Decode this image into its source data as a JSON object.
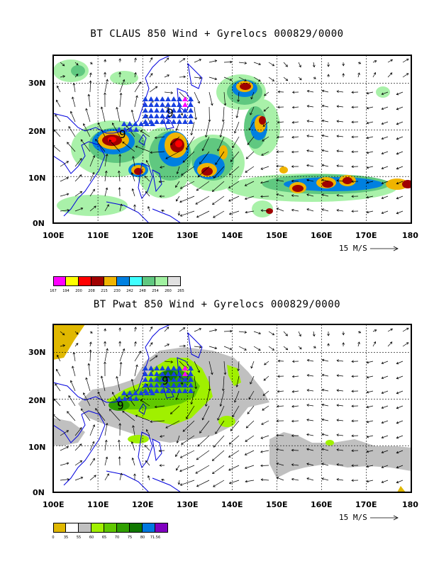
{
  "panels": [
    {
      "title": "BT CLAUS 850 Wind + Gyrelocs 000829/0000",
      "lon_labels": [
        "100E",
        "110E",
        "120E",
        "130E",
        "140E",
        "150E",
        "160E",
        "170E",
        "180"
      ],
      "lat_labels": [
        "30N",
        "20N",
        "10N",
        "0N"
      ],
      "ref_vector": "15 M/S",
      "colorbar_colors": [
        "#ff00ff",
        "#ffff00",
        "#ff0000",
        "#a00000",
        "#f0b400",
        "#0080e0",
        "#40ffff",
        "#60c880",
        "#a0f0a0",
        "#e0e0e0"
      ],
      "colorbar_labels": [
        "167",
        "194",
        "200",
        "208",
        "215",
        "230",
        "242",
        "248",
        "254",
        "260",
        "265"
      ]
    },
    {
      "title": "BT Pwat 850 Wind + Gyrelocs 000829/0000",
      "lon_labels": [
        "100E",
        "110E",
        "120E",
        "130E",
        "140E",
        "150E",
        "160E",
        "170E",
        "180"
      ],
      "lat_labels": [
        "30N",
        "20N",
        "10N",
        "0N"
      ],
      "ref_vector": "15 M/S",
      "colorbar_colors": [
        "#e0b800",
        "#ffffff",
        "#c0c0c0",
        "#a0f000",
        "#60c800",
        "#30a000",
        "#107800",
        "#0078e0",
        "#8000c0"
      ],
      "colorbar_labels": [
        "0",
        "35",
        "55",
        "60",
        "65",
        "70",
        "75",
        "80",
        "71.56"
      ]
    }
  ],
  "gyre_labels": [
    "9",
    "9"
  ]
}
